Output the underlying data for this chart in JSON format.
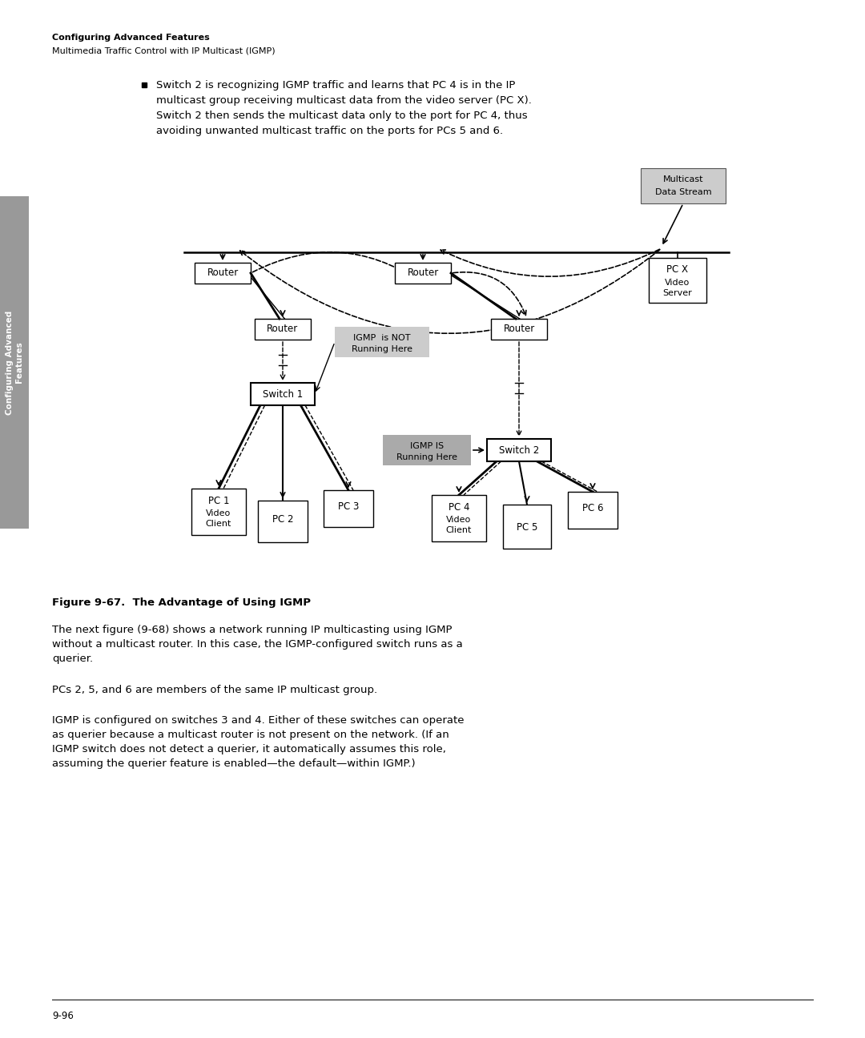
{
  "page_width": 10.8,
  "page_height": 12.96,
  "bg_color": "#ffffff",
  "header_bold": "Configuring Advanced Features",
  "header_normal": "Multimedia Traffic Control with IP Multicast (IGMP)",
  "bullet_text_lines": [
    "Switch 2 is recognizing IGMP traffic and learns that PC 4 is in the IP",
    "multicast group receiving multicast data from the video server (PC X).",
    "Switch 2 then sends the multicast data only to the port for PC 4, thus",
    "avoiding unwanted multicast traffic on the ports for PCs 5 and 6."
  ],
  "figure_caption": "Figure 9-67.  The Advantage of Using IGMP",
  "para1_lines": [
    "The next figure (9-68) shows a network running IP multicasting using IGMP",
    "without a multicast router. In this case, the IGMP-configured switch runs as a",
    "querier."
  ],
  "para2": "PCs 2, 5, and 6 are members of the same IP multicast group.",
  "para3_lines": [
    "IGMP is configured on switches 3 and 4. Either of these switches can operate",
    "as querier because a multicast router is not present on the network. (If an",
    "IGMP switch does not detect a querier, it automatically assumes this role,",
    "assuming the querier feature is enabled—the default—within IGMP.)"
  ],
  "page_num": "9-96",
  "sidebar_text": "Configuring Advanced\nFeatures"
}
